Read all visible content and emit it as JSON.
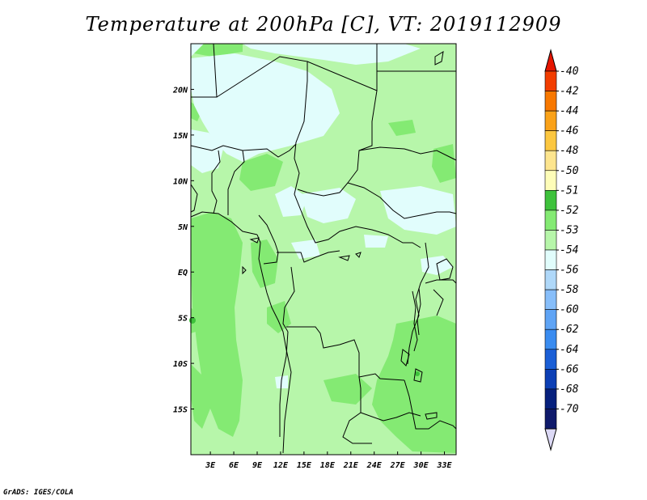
{
  "title": "Temperature at 200hPa [C], VT: 2019112909",
  "credit": "GrADS: IGES/COLA",
  "map": {
    "lat_labels": [
      "20N",
      "15N",
      "10N",
      "5N",
      "EQ",
      "5S",
      "10S",
      "15S"
    ],
    "lat_values": [
      20,
      15,
      10,
      5,
      0,
      -5,
      -10,
      -15
    ],
    "lon_labels": [
      "3E",
      "6E",
      "9E",
      "12E",
      "15E",
      "18E",
      "21E",
      "24E",
      "27E",
      "30E",
      "33E"
    ],
    "lon_values": [
      3,
      6,
      9,
      12,
      15,
      18,
      21,
      24,
      27,
      30,
      33
    ],
    "lon_range": [
      0.5,
      34.5
    ],
    "lat_range": [
      -20,
      25
    ],
    "colors": {
      "background_field": "#b7f6aa",
      "warm_patch": "#84ea73",
      "cold_patch": "#e1fdfc"
    }
  },
  "colorbar": {
    "labels": [
      "-40",
      "-42",
      "-44",
      "-46",
      "-48",
      "-50",
      "-51",
      "-52",
      "-53",
      "-54",
      "-56",
      "-58",
      "-60",
      "-62",
      "-64",
      "-66",
      "-68",
      "-70"
    ],
    "colors": [
      "#e51500",
      "#f23d00",
      "#f87800",
      "#faa219",
      "#fcc740",
      "#fde58e",
      "#fefdb8",
      "#3ec23c",
      "#84ea73",
      "#b7f6aa",
      "#e1fdfc",
      "#afd8f9",
      "#87befa",
      "#5fa4f5",
      "#3a8cf0",
      "#1b5fd6",
      "#0c3fb5",
      "#06207d",
      "#0f1a6b",
      "#dcd9f5"
    ]
  }
}
